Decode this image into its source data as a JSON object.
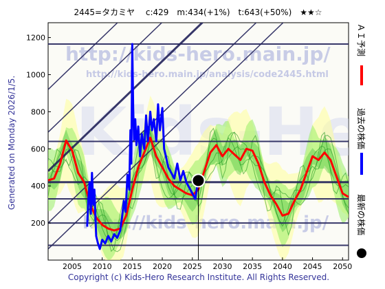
{
  "header": {
    "title": "2445=タカミヤ　 c:429　m:434(+1%)　t:643(+50%)　★★☆"
  },
  "left_note": "Generated on Monday 2026/1/5.",
  "copyright": "Copyright (c) Kids-Hero Research Institute. All Rights Reserved.",
  "watermarks": {
    "top": "http://kids-hero.main.jp/",
    "mid": "http://kids-hero.main.jp/analysis/code2445.html",
    "bottom": "http://kids-hero.main.jp/",
    "big": "Kids-Hero"
  },
  "legend": {
    "ai": "ＡＩ予測",
    "past": "過去の株価",
    "latest": "最新の株価",
    "colors": {
      "ai": "#ff0000",
      "past": "#0000ff",
      "latest": "#000000"
    }
  },
  "chart_data": {
    "type": "line",
    "xlim": [
      2001,
      2051
    ],
    "ylim": [
      0,
      1280
    ],
    "xticks": [
      2005,
      2010,
      2015,
      2020,
      2025,
      2030,
      2035,
      2040,
      2045,
      2050
    ],
    "yticks": [
      200,
      400,
      600,
      800,
      1000,
      1200
    ],
    "current": {
      "x": 2026.0,
      "y": 429
    },
    "hlines": [
      1165,
      640,
      420,
      330,
      200,
      80
    ],
    "trend_lines": [
      {
        "x": [
          2001,
          2051
        ],
        "y": [
          920,
          2480
        ]
      },
      {
        "x": [
          2001,
          2051
        ],
        "y": [
          690,
          2250
        ]
      },
      {
        "x": [
          2001,
          2051
        ],
        "y": [
          480,
          2040
        ]
      },
      {
        "x": [
          2001,
          2051
        ],
        "y": [
          200,
          1760
        ]
      },
      {
        "x": [
          2001,
          2051
        ],
        "y": [
          60,
          1620
        ]
      }
    ],
    "series": [
      {
        "role": "past",
        "color": "#0000ff",
        "points": [
          [
            2007.5,
            180
          ],
          [
            2007.7,
            330
          ],
          [
            2007.9,
            420
          ],
          [
            2008.1,
            250
          ],
          [
            2008.3,
            470
          ],
          [
            2008.5,
            300
          ],
          [
            2008.7,
            380
          ],
          [
            2009.0,
            130
          ],
          [
            2009.3,
            90
          ],
          [
            2009.6,
            60
          ],
          [
            2010.0,
            110
          ],
          [
            2010.5,
            90
          ],
          [
            2011.0,
            130
          ],
          [
            2011.5,
            100
          ],
          [
            2012.0,
            140
          ],
          [
            2012.5,
            120
          ],
          [
            2013.0,
            160
          ],
          [
            2013.3,
            230
          ],
          [
            2013.6,
            320
          ],
          [
            2013.9,
            260
          ],
          [
            2014.2,
            460
          ],
          [
            2014.5,
            380
          ],
          [
            2014.7,
            700
          ],
          [
            2014.85,
            520
          ],
          [
            2015.0,
            1165
          ],
          [
            2015.15,
            820
          ],
          [
            2015.3,
            650
          ],
          [
            2015.5,
            760
          ],
          [
            2015.7,
            620
          ],
          [
            2016.0,
            720
          ],
          [
            2016.3,
            560
          ],
          [
            2016.6,
            680
          ],
          [
            2017.0,
            600
          ],
          [
            2017.3,
            780
          ],
          [
            2017.6,
            640
          ],
          [
            2018.0,
            800
          ],
          [
            2018.3,
            700
          ],
          [
            2018.6,
            760
          ],
          [
            2019.0,
            640
          ],
          [
            2019.3,
            840
          ],
          [
            2019.6,
            700
          ],
          [
            2020.0,
            820
          ],
          [
            2020.3,
            600
          ],
          [
            2020.6,
            560
          ],
          [
            2021.0,
            500
          ],
          [
            2021.5,
            470
          ],
          [
            2022.0,
            440
          ],
          [
            2022.5,
            520
          ],
          [
            2023.0,
            430
          ],
          [
            2023.5,
            480
          ],
          [
            2024.0,
            420
          ],
          [
            2024.5,
            390
          ],
          [
            2025.0,
            360
          ],
          [
            2025.5,
            330
          ],
          [
            2025.8,
            400
          ],
          [
            2026.0,
            429
          ]
        ]
      },
      {
        "role": "ai",
        "color": "#ff0000",
        "points": [
          [
            2001,
            430
          ],
          [
            2002,
            440
          ],
          [
            2003,
            520
          ],
          [
            2004,
            645
          ],
          [
            2005,
            590
          ],
          [
            2006,
            470
          ],
          [
            2007,
            420
          ],
          [
            2008,
            300
          ],
          [
            2009,
            230
          ],
          [
            2010,
            190
          ],
          [
            2011,
            170
          ],
          [
            2012,
            160
          ],
          [
            2013,
            170
          ],
          [
            2014,
            240
          ],
          [
            2015,
            380
          ],
          [
            2016,
            500
          ],
          [
            2017,
            580
          ],
          [
            2018,
            660
          ],
          [
            2019,
            560
          ],
          [
            2020,
            500
          ],
          [
            2021,
            440
          ],
          [
            2022,
            400
          ],
          [
            2023,
            380
          ],
          [
            2024,
            360
          ],
          [
            2025,
            350
          ],
          [
            2026,
            380
          ],
          [
            2027,
            480
          ],
          [
            2028,
            580
          ],
          [
            2029,
            620
          ],
          [
            2030,
            560
          ],
          [
            2031,
            600
          ],
          [
            2032,
            570
          ],
          [
            2033,
            540
          ],
          [
            2034,
            600
          ],
          [
            2035,
            590
          ],
          [
            2036,
            520
          ],
          [
            2037,
            420
          ],
          [
            2038,
            350
          ],
          [
            2039,
            300
          ],
          [
            2040,
            240
          ],
          [
            2041,
            250
          ],
          [
            2042,
            320
          ],
          [
            2043,
            380
          ],
          [
            2044,
            470
          ],
          [
            2045,
            560
          ],
          [
            2046,
            540
          ],
          [
            2047,
            580
          ],
          [
            2048,
            540
          ],
          [
            2049,
            450
          ],
          [
            2050,
            360
          ],
          [
            2051,
            340
          ]
        ]
      }
    ]
  }
}
